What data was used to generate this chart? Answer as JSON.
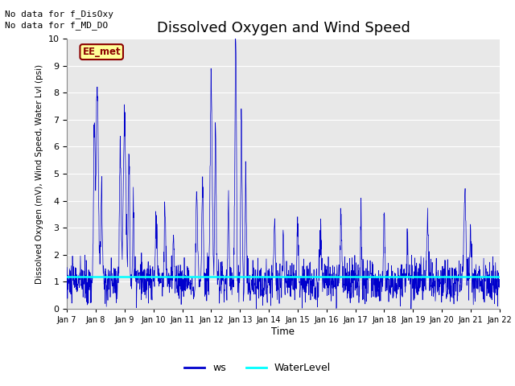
{
  "title": "Dissolved Oxygen and Wind Speed",
  "ylabel": "Dissolved Oxygen (mV), Wind Speed, Water Lvl (psi)",
  "xlabel": "Time",
  "ylim": [
    0.0,
    10.0
  ],
  "yticks": [
    0.0,
    1.0,
    2.0,
    3.0,
    4.0,
    5.0,
    6.0,
    7.0,
    8.0,
    9.0,
    10.0
  ],
  "xtick_labels": [
    "Jan 7",
    "Jan 8",
    "Jan 9",
    "Jan 10",
    "Jan 11",
    "Jan 12",
    "Jan 13",
    "Jan 14",
    "Jan 15",
    "Jan 16",
    "Jan 17",
    "Jan 18",
    "Jan 19",
    "Jan 20",
    "Jan 21",
    "Jan 22"
  ],
  "ws_color": "#0000cc",
  "water_level_color": "#00ffff",
  "water_level_value": 1.18,
  "background_color": "#e8e8e8",
  "annotation_line1": "No data for f_DisOxy",
  "annotation_line2": "No data for f_MD_DO",
  "annotation_fontsize": 8,
  "legend_ws_label": "ws",
  "legend_wl_label": "WaterLevel",
  "station_label": "EE_met",
  "station_box_facecolor": "#ffff99",
  "station_box_edgecolor": "#8b0000",
  "title_fontsize": 13,
  "n_points": 1800,
  "seed": 10
}
